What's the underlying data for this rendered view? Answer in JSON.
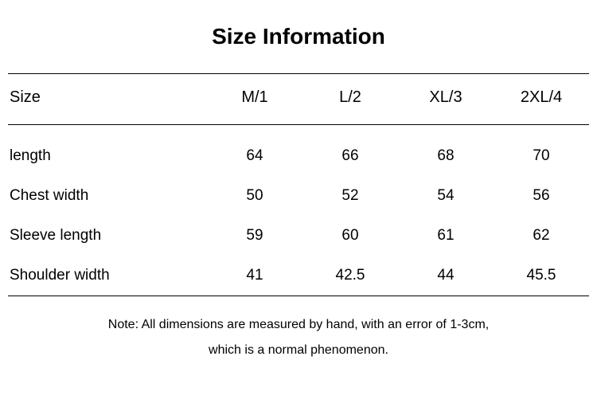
{
  "title": "Size Information",
  "table": {
    "type": "table",
    "columns": [
      "Size",
      "M/1",
      "L/2",
      "XL/3",
      "2XL/4"
    ],
    "rows": [
      {
        "label": "length",
        "values": [
          "64",
          "66",
          "68",
          "70"
        ]
      },
      {
        "label": "Chest width",
        "values": [
          "50",
          "52",
          "54",
          "56"
        ]
      },
      {
        "label": "Sleeve length",
        "values": [
          "59",
          "60",
          "61",
          "62"
        ]
      },
      {
        "label": "Shoulder width",
        "values": [
          "41",
          "42.5",
          "44",
          "45.5"
        ]
      }
    ],
    "border_color": "#000000",
    "background_color": "#ffffff",
    "title_fontsize": 28,
    "header_fontsize": 20,
    "cell_fontsize": 19,
    "note_fontsize": 16
  },
  "note_line1": "Note: All dimensions are measured by hand, with an error of 1-3cm,",
  "note_line2": "which is a normal phenomenon."
}
